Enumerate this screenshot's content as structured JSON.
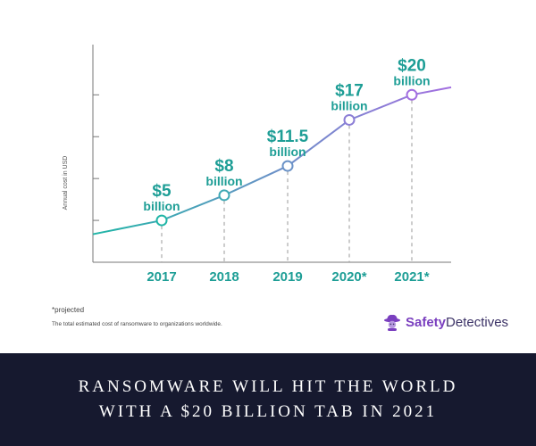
{
  "chart_data": {
    "type": "line",
    "title": "",
    "xlabel": "",
    "ylabel": "Annual cost in USD",
    "categories": [
      "2017",
      "2018",
      "2019",
      "2020*",
      "2021*"
    ],
    "values": [
      5,
      8,
      11.5,
      17,
      20
    ],
    "value_labels": [
      {
        "amount": "$5",
        "unit": "billion"
      },
      {
        "amount": "$8",
        "unit": "billion"
      },
      {
        "amount": "$11.5",
        "unit": "billion"
      },
      {
        "amount": "$17",
        "unit": "billion"
      },
      {
        "amount": "$20",
        "unit": "billion"
      }
    ],
    "ylim": [
      0,
      26
    ],
    "yticks": [
      0,
      5,
      10,
      15,
      20
    ],
    "grid": false,
    "colors": {
      "start": "#1fb5a6",
      "mid": "#6a92c7",
      "end": "#a26ee0",
      "label": "#1e9e96",
      "axis": "#777777"
    }
  },
  "footnotes": {
    "projected": "*projected",
    "description": "The total estimated cost of ransomware to organizations worldwide."
  },
  "brand": {
    "part1": "Safety",
    "part2": "Detectives",
    "icon": "detective-hat-icon"
  },
  "footer": {
    "line1": "RANSOMWARE WILL HIT THE WORLD",
    "line2": "WITH A $20 BILLION TAB IN 2021",
    "background": "#16192f"
  }
}
